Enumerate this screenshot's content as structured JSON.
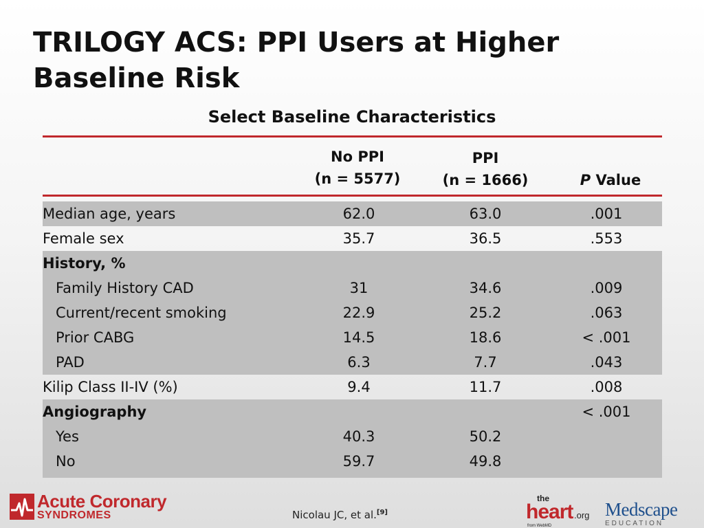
{
  "slide": {
    "title_line1": "TRILOGY ACS: PPI Users at Higher",
    "title_line2": "Baseline Risk",
    "table_title": "Select Baseline Characteristics"
  },
  "table": {
    "header": {
      "col1_line1": "No PPI",
      "col1_line2": "(n = 5577)",
      "col2_line1": "PPI",
      "col2_line2": "(n = 1666)",
      "col3_italic": "P",
      "col3_rest": " Value"
    },
    "rows": [
      {
        "label": "Median age, years",
        "no_ppi": "62.0",
        "ppi": "63.0",
        "p": ".001"
      },
      {
        "label": "Female sex",
        "no_ppi": "35.7",
        "ppi": "36.5",
        "p": ".553"
      },
      {
        "label": "History, %",
        "no_ppi": "",
        "ppi": "",
        "p": ""
      },
      {
        "label": "Family History CAD",
        "no_ppi": "31",
        "ppi": "34.6",
        "p": ".009"
      },
      {
        "label": "Current/recent smoking",
        "no_ppi": "22.9",
        "ppi": "25.2",
        "p": ".063"
      },
      {
        "label": "Prior CABG",
        "no_ppi": "14.5",
        "ppi": "18.6",
        "p": "< .001"
      },
      {
        "label": "PAD",
        "no_ppi": "6.3",
        "ppi": "7.7",
        "p": ".043"
      },
      {
        "label": "Kilip Class II-IV (%)",
        "no_ppi": "9.4",
        "ppi": "11.7",
        "p": ".008"
      },
      {
        "label": "Angiography",
        "no_ppi": "",
        "ppi": "",
        "p": "< .001"
      },
      {
        "label": "Yes",
        "no_ppi": "40.3",
        "ppi": "50.2",
        "p": ""
      },
      {
        "label": "No",
        "no_ppi": "59.7",
        "ppi": "49.8",
        "p": ""
      }
    ]
  },
  "footer": {
    "logo_line1": "Acute Coronary",
    "logo_line2": "SYNDROMES",
    "citation": "Nicolau JC, et al.",
    "citation_ref": "[9]",
    "heart_the": "the",
    "heart_main": "heart",
    "heart_org": ".org",
    "heart_from": "from WebMD",
    "medscape_main": "Medscape",
    "medscape_sub": "EDUCATION"
  },
  "colors": {
    "accent_red": "#c0282c",
    "row_shade": "#bfbfbf",
    "medscape_blue": "#1e4f8c"
  }
}
